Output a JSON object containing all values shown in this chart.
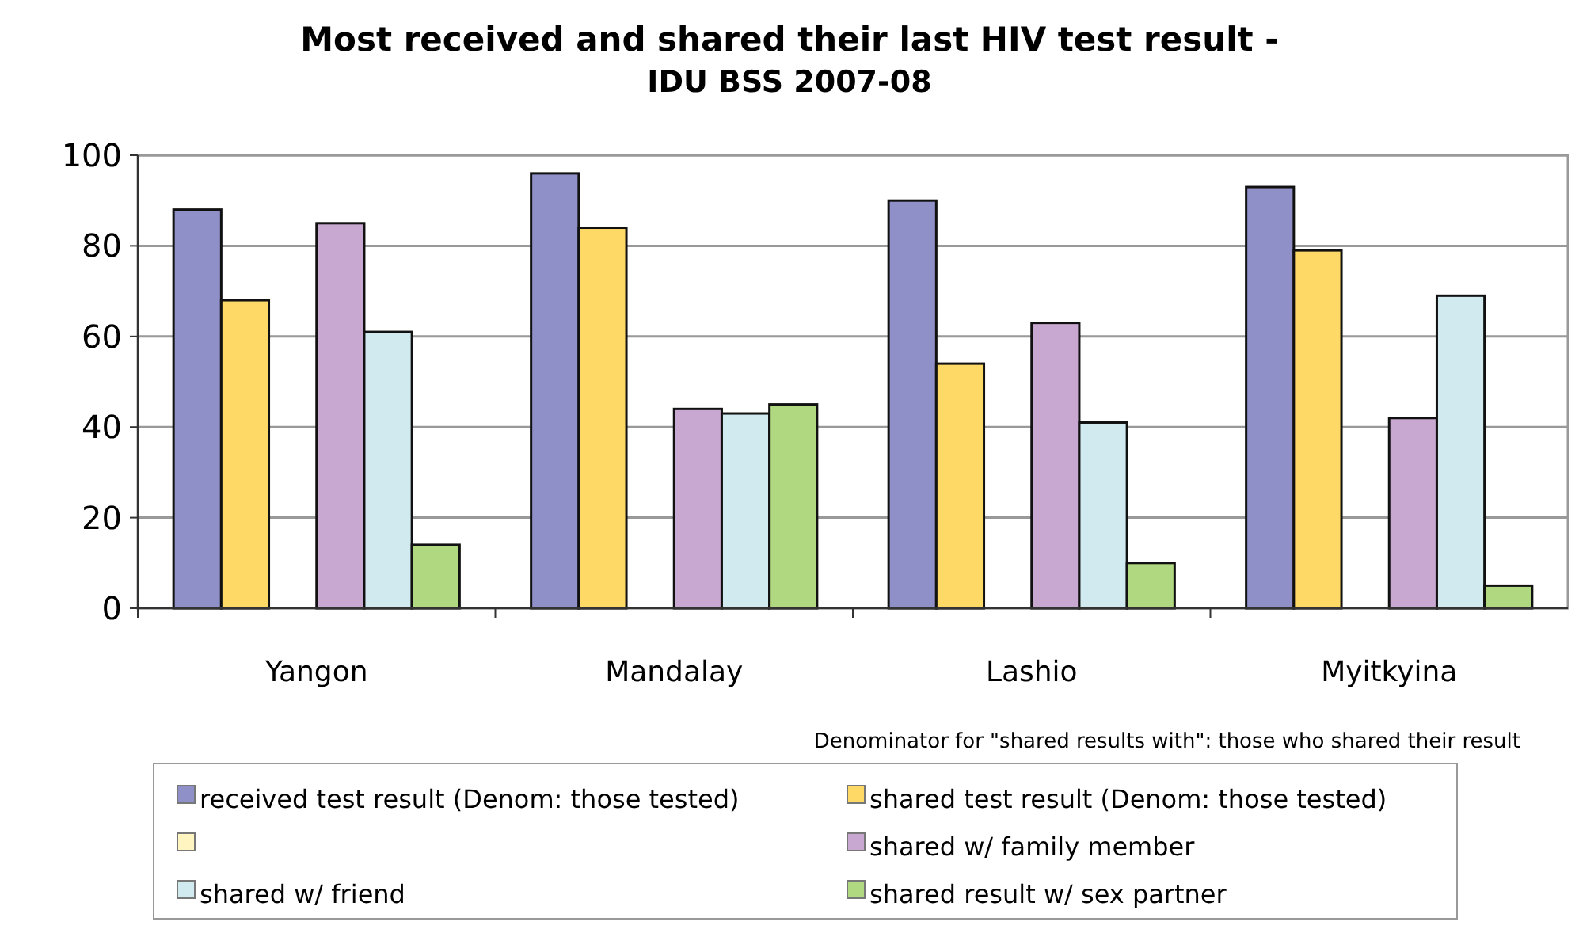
{
  "chart_data": {
    "type": "bar",
    "title": "Most received and shared their last HIV test result -",
    "subtitle": "IDU BSS 2007-08",
    "categories": [
      "Yangon",
      "Mandalay",
      "Lashio",
      "Myitkyina"
    ],
    "series": [
      {
        "name": "received test result (Denom: those tested)",
        "color": "#9090c8",
        "values": [
          88,
          96,
          90,
          93
        ]
      },
      {
        "name": "shared test result (Denom: those tested)",
        "color": "#ffd966",
        "values": [
          68,
          84,
          54,
          79
        ]
      },
      {
        "color": "#fff5c0",
        "values": [
          null,
          null,
          null,
          null
        ]
      },
      {
        "name": "shared w/ family member",
        "color": "#c8a8d0",
        "values": [
          85,
          44,
          63,
          42
        ]
      },
      {
        "name": "shared w/ friend",
        "color": "#d0eaf0",
        "values": [
          61,
          43,
          41,
          69
        ]
      },
      {
        "name": "shared result w/ sex partner",
        "color": "#b0d880",
        "values": [
          14,
          45,
          10,
          5
        ]
      }
    ],
    "ylim": [
      0,
      100
    ],
    "yticks": [
      0,
      20,
      40,
      60,
      80,
      100
    ],
    "grid": "y",
    "legend": "bottom",
    "annotations": [
      "Denominator for \"shared results with\": those who shared their result"
    ]
  }
}
